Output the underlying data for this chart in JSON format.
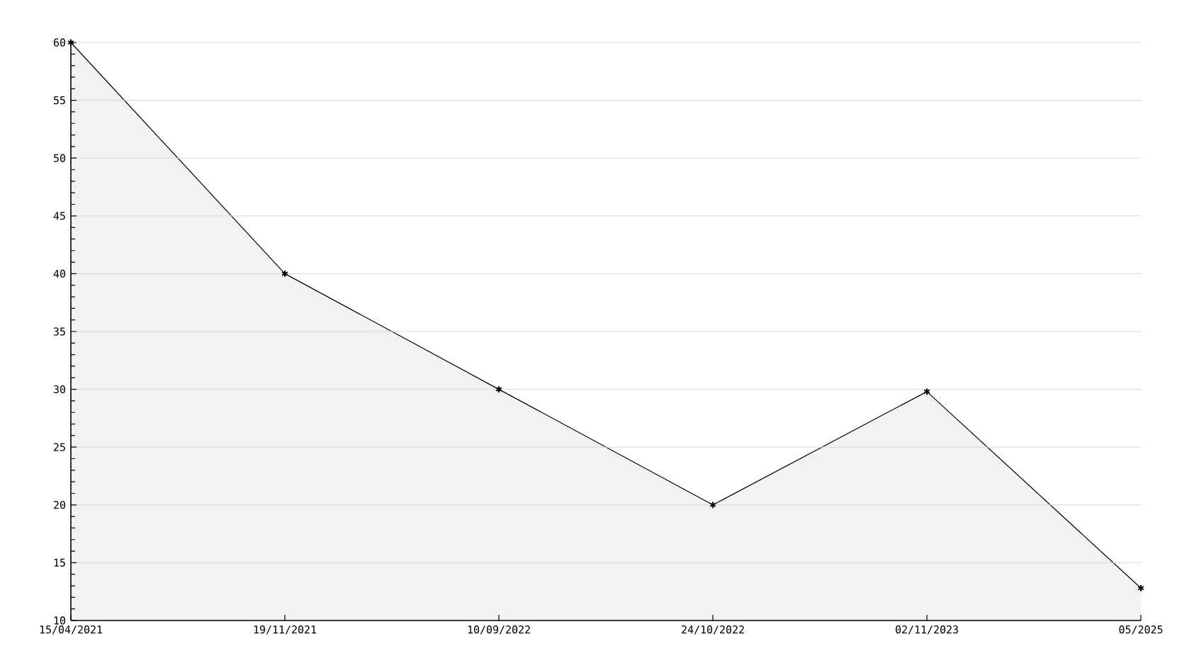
{
  "chart_data": {
    "type": "area",
    "categories": [
      "15/04/2021",
      "19/11/2021",
      "10/09/2022",
      "24/10/2022",
      "02/11/2023",
      "05/2025"
    ],
    "series": [
      {
        "color": "#000000",
        "values": [
          60,
          40,
          30,
          20,
          29.8,
          12.8
        ]
      }
    ],
    "ylim": [
      10,
      60
    ],
    "yticks": [
      10,
      15,
      20,
      25,
      30,
      35,
      40,
      45,
      50,
      55,
      60
    ],
    "grid": "y",
    "marker": "cross",
    "line_style": "solid"
  }
}
